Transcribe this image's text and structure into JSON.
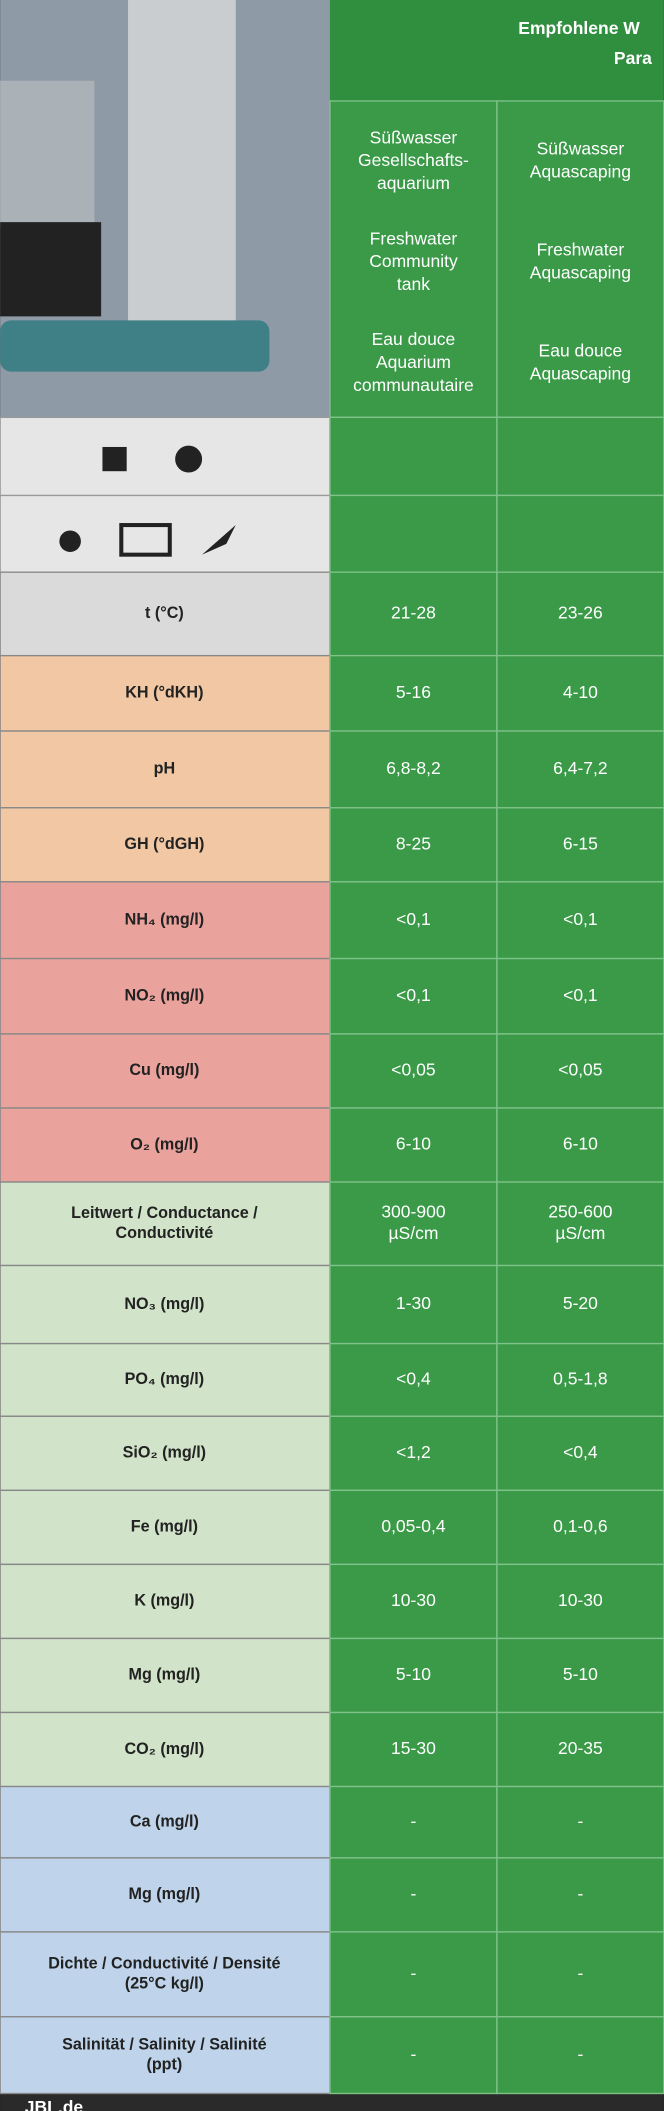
{
  "header": {
    "title": [
      "Empfohlene W",
      "Para"
    ],
    "columns": [
      [
        [
          "Süßwasser",
          "Gesellschafts-",
          "aquarium"
        ],
        [
          "Freshwater",
          "Community",
          "tank"
        ],
        [
          "Eau douce",
          "Aquarium",
          "communautaire"
        ]
      ],
      [
        [
          "Süßwasser",
          "Aquascaping"
        ],
        [
          "Freshwater",
          "Aquascaping"
        ],
        [
          "Eau douce",
          "Aquascaping"
        ]
      ]
    ]
  },
  "groups": [
    {
      "rows": [
        {
          "label": "t (°C)",
          "values": [
            "21-28",
            "23-26"
          ]
        }
      ]
    },
    {
      "rows": [
        {
          "label": "KH (°dKH)",
          "values": [
            "5-16",
            "4-10"
          ]
        },
        {
          "label": "pH",
          "values": [
            "6,8-8,2",
            "6,4-7,2"
          ]
        },
        {
          "label": "GH (°dGH)",
          "values": [
            "8-25",
            "6-15"
          ]
        }
      ]
    },
    {
      "rows": [
        {
          "label": "NH₄ (mg/l)",
          "values": [
            "<0,1",
            "<0,1"
          ]
        },
        {
          "label": "NO₂ (mg/l)",
          "values": [
            "<0,1",
            "<0,1"
          ]
        },
        {
          "label": "Cu (mg/l)",
          "values": [
            "<0,05",
            "<0,05"
          ]
        },
        {
          "label": "O₂ (mg/l)",
          "values": [
            "6-10",
            "6-10"
          ]
        }
      ]
    },
    {
      "rows": [
        {
          "label": [
            "Leitwert / Conductance /",
            "Conductivité"
          ],
          "values": [
            [
              "300-900",
              "µS/cm"
            ],
            [
              "250-600",
              "µS/cm"
            ]
          ]
        },
        {
          "label": "NO₃ (mg/l)",
          "values": [
            "1-30",
            "5-20"
          ]
        },
        {
          "label": "PO₄ (mg/l)",
          "values": [
            "<0,4",
            "0,5-1,8"
          ]
        },
        {
          "label": "SiO₂ (mg/l)",
          "values": [
            "<1,2",
            "<0,4"
          ]
        },
        {
          "label": "Fe (mg/l)",
          "values": [
            "0,05-0,4",
            "0,1-0,6"
          ]
        },
        {
          "label": "K (mg/l)",
          "values": [
            "10-30",
            "10-30"
          ]
        },
        {
          "label": "Mg (mg/l)",
          "values": [
            "5-10",
            "5-10"
          ]
        },
        {
          "label": "CO₂ (mg/l)",
          "values": [
            "15-30",
            "20-35"
          ]
        }
      ]
    },
    {
      "rows": [
        {
          "label": "Ca (mg/l)",
          "values": [
            "-",
            "-"
          ]
        },
        {
          "label": "Mg (mg/l)",
          "values": [
            "-",
            "-"
          ]
        },
        {
          "label": [
            "Dichte / Conductivité / Densité",
            "(25°C kg/l)"
          ],
          "values": [
            "-",
            "-"
          ]
        },
        {
          "label": [
            "Salinität / Salinity / Salinité",
            "(ppt)"
          ],
          "values": [
            "-",
            "-"
          ]
        }
      ]
    }
  ],
  "footer": "JBL.de"
}
